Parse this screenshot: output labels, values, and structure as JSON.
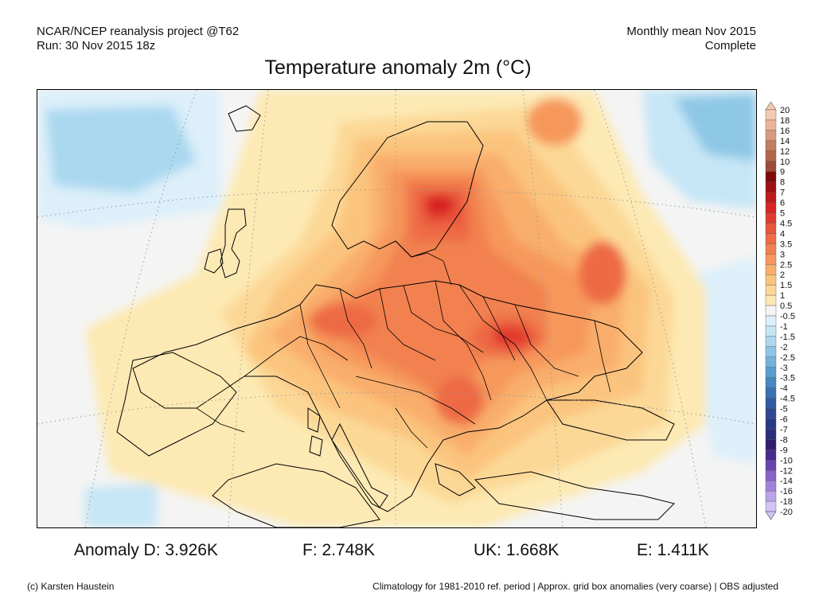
{
  "header": {
    "left_line1": "NCAR/NCEP reanalysis project @T62",
    "left_line2": "Run: 30 Nov 2015 18z",
    "right_line1": "Monthly mean Nov 2015",
    "right_line2": "Complete"
  },
  "title": "Temperature anomaly 2m (°C)",
  "colorbar": {
    "labels": [
      "20",
      "18",
      "16",
      "14",
      "12",
      "10",
      "9",
      "8",
      "7",
      "6",
      "5",
      "4.5",
      "4",
      "3.5",
      "3",
      "2.5",
      "2",
      "1.5",
      "1",
      "0.5",
      "-0.5",
      "-1",
      "-1.5",
      "-2",
      "-2.5",
      "-3",
      "-3.5",
      "-4",
      "-4.5",
      "-5",
      "-6",
      "-7",
      "-8",
      "-9",
      "-10",
      "-12",
      "-14",
      "-16",
      "-18",
      "-20"
    ],
    "colors": [
      "#f5c9b0",
      "#eeb49a",
      "#d99a7d",
      "#c47d60",
      "#b3654a",
      "#9f4b35",
      "#7f0a0a",
      "#a10f10",
      "#c01a1a",
      "#d82424",
      "#e23a2f",
      "#e8553b",
      "#ee6b45",
      "#f2814f",
      "#f6985c",
      "#f9ae6c",
      "#fbc47e",
      "#fcd896",
      "#fde9b3",
      "#f4f4f4",
      "#dceffa",
      "#c6e6f6",
      "#aad8ef",
      "#8ec7e6",
      "#73b3da",
      "#5a9ece",
      "#4788c2",
      "#3a70b3",
      "#315aa3",
      "#2c4794",
      "#283a86",
      "#2a2e7a",
      "#311f6e",
      "#4a2a8c",
      "#6a45ae",
      "#8763c8",
      "#a282dc",
      "#baa3ea",
      "#d2c3f4"
    ]
  },
  "stats": {
    "d": "Anomaly D: 3.926K",
    "f": "F: 2.748K",
    "uk": "UK: 1.668K",
    "e": "E: 1.411K"
  },
  "footer": {
    "left": "(c) Karsten Haustein",
    "right": "Climatology for 1981-2010 ref. period | Approx. grid box anomalies (very coarse) | OBS adjusted"
  }
}
